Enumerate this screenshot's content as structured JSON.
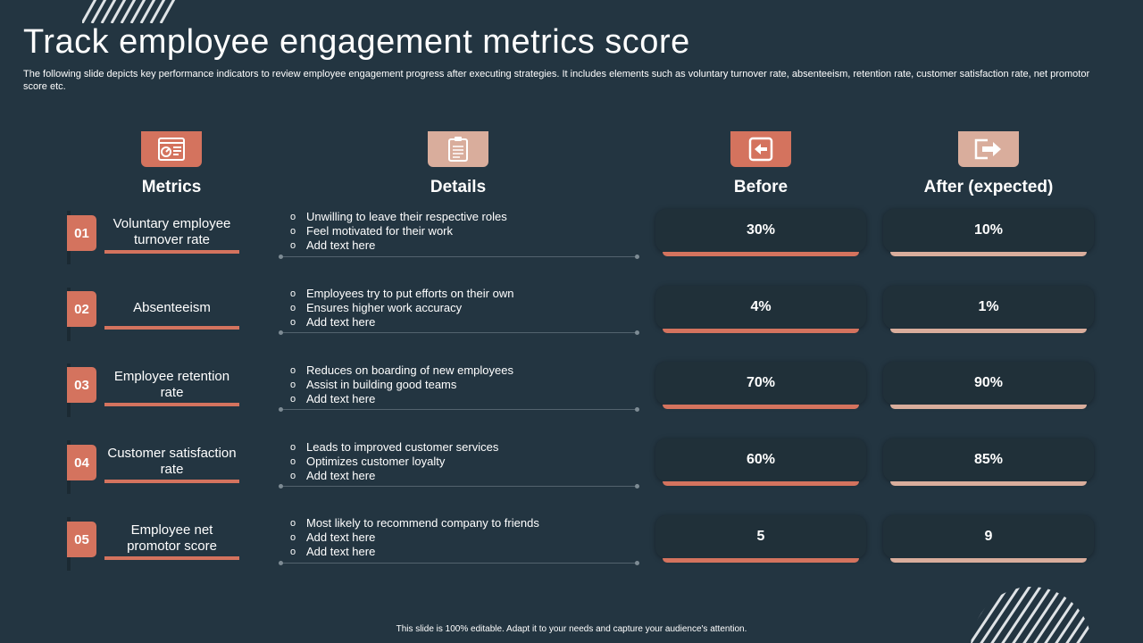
{
  "title": "Track employee engagement metrics score",
  "subtitle": "The following slide depicts key performance indicators to review employee engagement progress after executing strategies. It includes elements such as voluntary turnover rate,  absenteeism, retention rate, customer satisfaction rate, net promotor score etc.",
  "columns": {
    "metrics": "Metrics",
    "details": "Details",
    "before": "Before",
    "after": "After (expected)"
  },
  "icons": {
    "metrics": "dashboard-icon",
    "details": "clipboard-icon",
    "before": "back-arrow-icon",
    "after": "exit-arrow-icon"
  },
  "colors": {
    "background": "#233541",
    "accent": "#d4735e",
    "accent_light": "#d9ad9c"
  },
  "rows": [
    {
      "num": "01",
      "metric": "Voluntary employee turnover rate",
      "details": [
        "Unwilling to leave their respective  roles",
        "Feel motivated  for their work",
        "Add text here"
      ],
      "before": "30%",
      "after": "10%"
    },
    {
      "num": "02",
      "metric": "Absenteeism",
      "details": [
        "Employees try to put efforts  on their own",
        "Ensures higher  work accuracy",
        "Add text here"
      ],
      "before": "4%",
      "after": "1%"
    },
    {
      "num": "03",
      "metric": "Employee retention rate",
      "details": [
        "Reduces on boarding  of new employees",
        "Assist in building good teams",
        "Add text here"
      ],
      "before": "70%",
      "after": "90%"
    },
    {
      "num": "04",
      "metric": "Customer satisfaction rate",
      "details": [
        "Leads to improved  customer services",
        "Optimizes customer loyalty",
        "Add text here"
      ],
      "before": "60%",
      "after": "85%"
    },
    {
      "num": "05",
      "metric": "Employee net promotor score",
      "details": [
        "Most likely to recommend  company to friends",
        "Add text here",
        "Add text here"
      ],
      "before": "5",
      "after": "9"
    }
  ],
  "footer": "This slide is 100% editable.  Adapt it to your needs and capture your audience's attention."
}
